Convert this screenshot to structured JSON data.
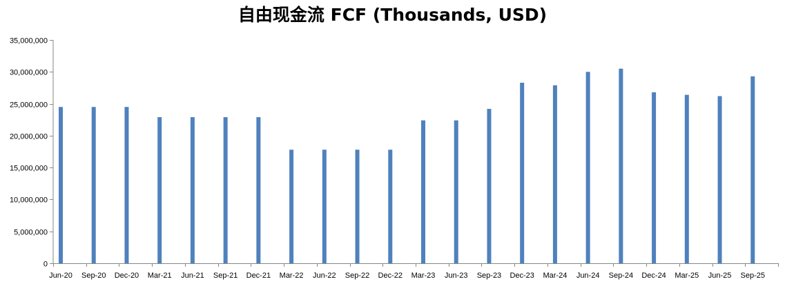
{
  "chart_data": {
    "type": "bar",
    "title": "自由现金流 FCF (Thousands, USD)",
    "xlabel": "",
    "ylabel": "",
    "categories": [
      "Jun-20",
      "Sep-20",
      "Dec-20",
      "Mar-21",
      "Jun-21",
      "Sep-21",
      "Dec-21",
      "Mar-22",
      "Jun-22",
      "Sep-22",
      "Dec-22",
      "Mar-23",
      "Jun-23",
      "Sep-23",
      "Dec-23",
      "Mar-24",
      "Jun-24",
      "Sep-24",
      "Dec-24",
      "Mar-25",
      "Jun-25",
      "Sep-25"
    ],
    "values": [
      24500000,
      24500000,
      24500000,
      22900000,
      22900000,
      22900000,
      22900000,
      17800000,
      17800000,
      17800000,
      17800000,
      22400000,
      22400000,
      24200000,
      28300000,
      27900000,
      30000000,
      30500000,
      26800000,
      26400000,
      26200000,
      29300000
    ],
    "ylim": [
      0,
      35000000
    ],
    "yticks": [
      0,
      5000000,
      10000000,
      15000000,
      20000000,
      25000000,
      30000000,
      35000000
    ],
    "ytick_labels": [
      "0",
      "5,000,000",
      "10,000,000",
      "15,000,000",
      "20,000,000",
      "25,000,000",
      "30,000,000",
      "35,000,000"
    ],
    "grid": false,
    "legend": "none",
    "bar_color": "#4F81BD",
    "axis_color": "#868686"
  }
}
